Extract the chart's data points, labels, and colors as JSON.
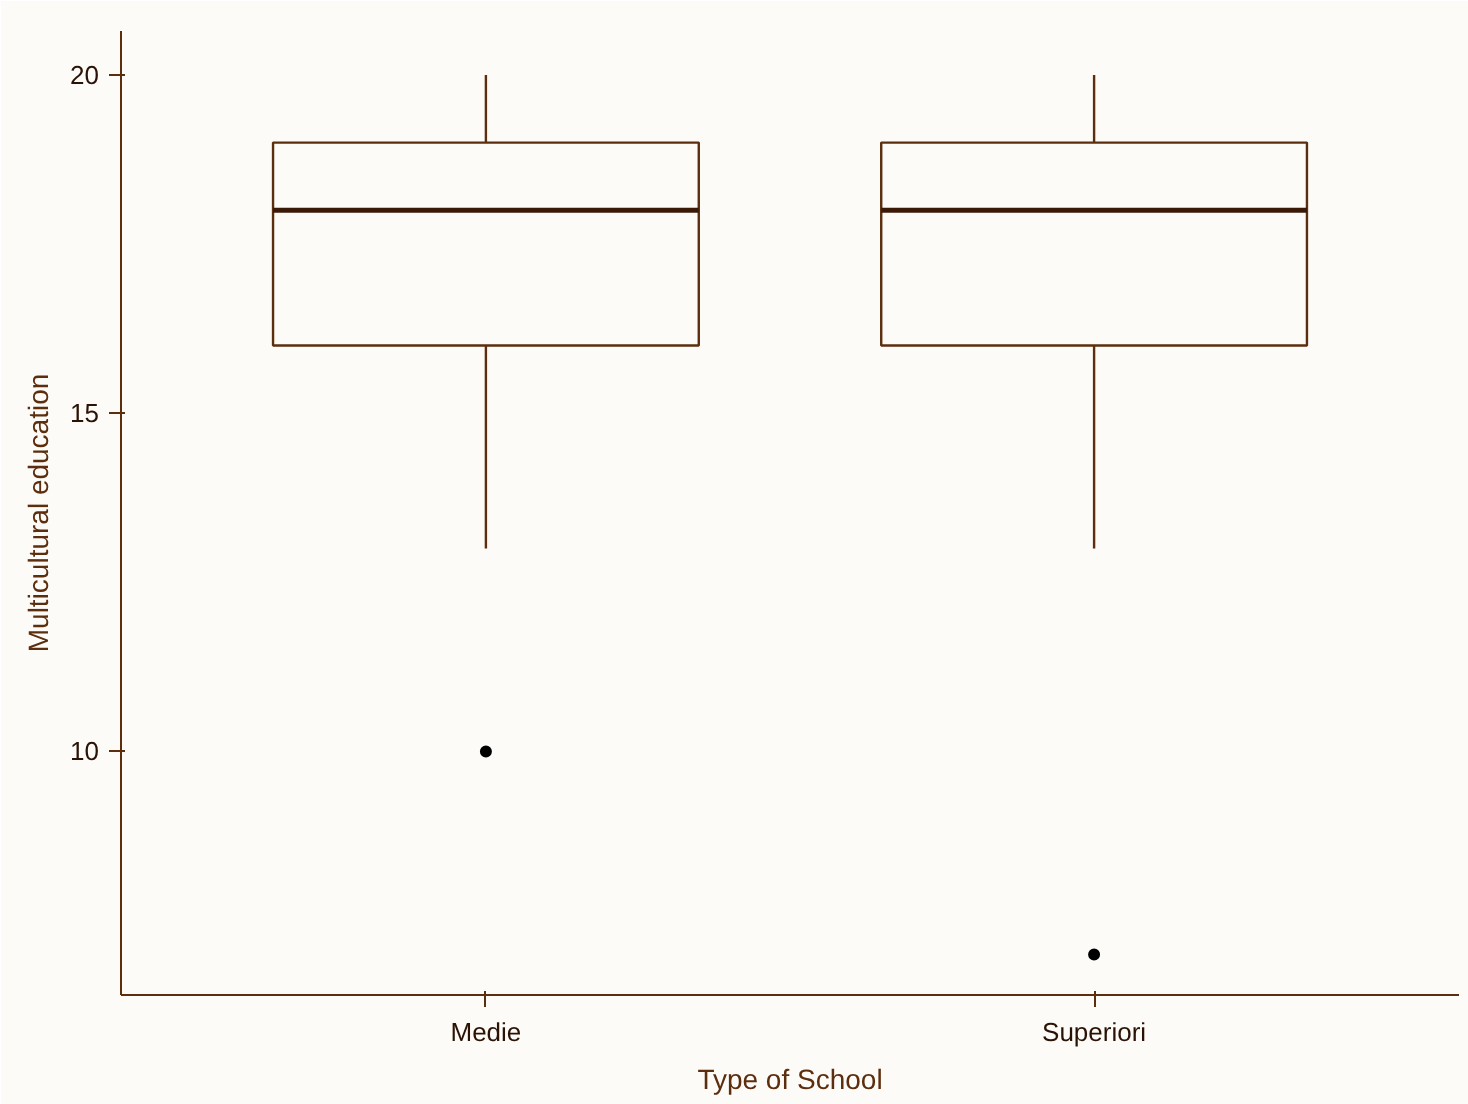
{
  "chart_data": {
    "type": "box",
    "xlabel": "Type of School",
    "ylabel": "Multicultural education",
    "categories": [
      "Medie",
      "Superiori"
    ],
    "boxes": [
      {
        "low": 13,
        "q1": 16,
        "median": 18,
        "q3": 19,
        "high": 20,
        "outliers": [
          10
        ]
      },
      {
        "low": 13,
        "q1": 16,
        "median": 18,
        "q3": 19,
        "high": 20,
        "outliers": [
          7
        ]
      }
    ],
    "color": "#5c2e0e",
    "ylim": [
      6.4,
      20.65
    ],
    "yticks": [
      10,
      15,
      20
    ],
    "grid": false
  }
}
